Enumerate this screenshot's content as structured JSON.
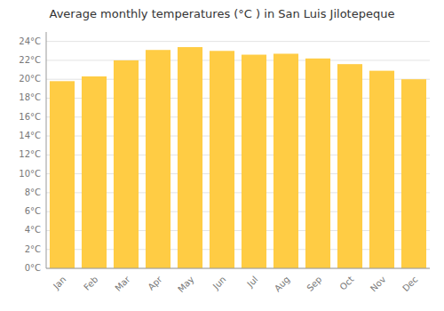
{
  "chart_data": {
    "type": "bar",
    "title": "Average monthly temperatures (°C ) in San Luis Jilotepeque",
    "categories": [
      "Jan",
      "Feb",
      "Mar",
      "Apr",
      "May",
      "Jun",
      "Jul",
      "Aug",
      "Sep",
      "Oct",
      "Nov",
      "Dec"
    ],
    "values": [
      19.8,
      20.3,
      22.0,
      23.1,
      23.4,
      23.0,
      22.6,
      22.7,
      22.2,
      21.6,
      20.9,
      20.0
    ],
    "color": "#FFCC44",
    "ylim": [
      0,
      25
    ],
    "yticks": [
      {
        "value": 0,
        "label": "0°C"
      },
      {
        "value": 2,
        "label": "2°C"
      },
      {
        "value": 4,
        "label": "4°C"
      },
      {
        "value": 6,
        "label": "6°C"
      },
      {
        "value": 8,
        "label": "8°C"
      },
      {
        "value": 10,
        "label": "10°C"
      },
      {
        "value": 12,
        "label": "12°C"
      },
      {
        "value": 14,
        "label": "14°C"
      },
      {
        "value": 16,
        "label": "16°C"
      },
      {
        "value": 18,
        "label": "18°C"
      },
      {
        "value": 20,
        "label": "20°C"
      },
      {
        "value": 22,
        "label": "22°C"
      },
      {
        "value": 24,
        "label": "24°C"
      }
    ],
    "grid": true
  }
}
